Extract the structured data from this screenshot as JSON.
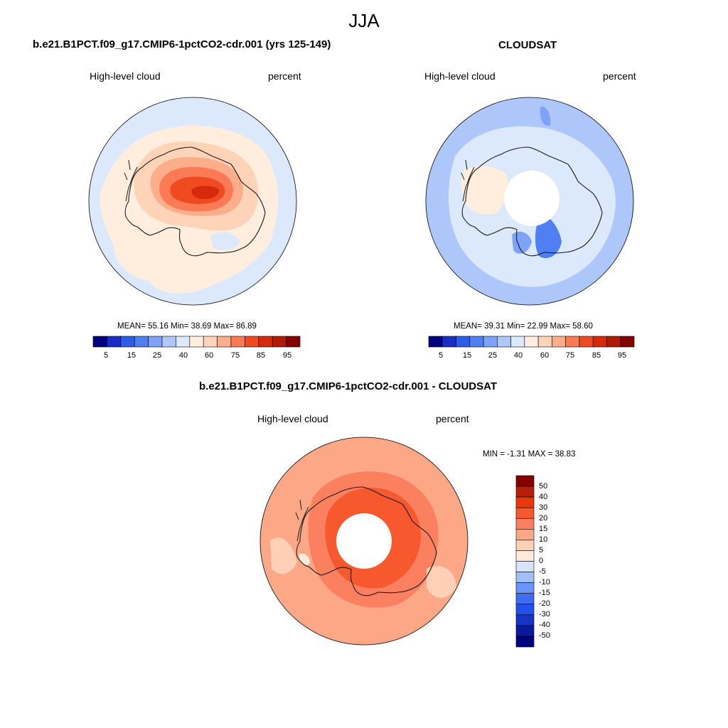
{
  "title": "JJA",
  "colors": {
    "abs_scale": [
      "#000080",
      "#1a2dc8",
      "#2e5ce6",
      "#4f7ff2",
      "#7ca3f7",
      "#aec7fa",
      "#dce9fc",
      "#ffeede",
      "#ffd3b8",
      "#fcae8a",
      "#fa7a55",
      "#f04a22",
      "#d72a0d",
      "#b01a06",
      "#870000"
    ],
    "diff_scale": [
      "#000080",
      "#0a1a9a",
      "#1535c8",
      "#2250ea",
      "#3d6ef2",
      "#6a94f6",
      "#a2bff9",
      "#d5e4fb",
      "#ffeadb",
      "#ffd0b6",
      "#fca886",
      "#fb8060",
      "#f8582d",
      "#e9380e",
      "#b81d05",
      "#870000"
    ],
    "coastline": "#1a1a1a"
  },
  "panels": {
    "model": {
      "title": "b.e21.B1PCT.f09_g17.CMIP6-1pctCO2-cdr.001 (yrs 125-149)",
      "left_label": "High-level cloud",
      "right_label": "percent",
      "stats": "MEAN=  55.16  Min=  38.69  Max=  86.89",
      "stats_values": {
        "mean": 55.16,
        "min": 38.69,
        "max": 86.89
      }
    },
    "obs": {
      "title": "CLOUDSAT",
      "left_label": "High-level cloud",
      "right_label": "percent",
      "stats": "MEAN=  39.31  Min=  22.99  Max=  58.60",
      "stats_values": {
        "mean": 39.31,
        "min": 22.99,
        "max": 58.6
      }
    },
    "diff": {
      "title": "b.e21.B1PCT.f09_g17.CMIP6-1pctCO2-cdr.001 - CLOUDSAT",
      "left_label": "High-level cloud",
      "right_label": "percent",
      "stats": "MIN =  -1.31 MAX =  38.83",
      "stats_values": {
        "min": -1.31,
        "max": 38.83
      }
    }
  },
  "abs_colorbar_labels": [
    "5",
    "15",
    "25",
    "40",
    "60",
    "75",
    "85",
    "95"
  ],
  "diff_colorbar_labels": [
    "50",
    "40",
    "30",
    "20",
    "15",
    "10",
    "5",
    "0",
    "-5",
    "-10",
    "-15",
    "-20",
    "-30",
    "-40",
    "-50"
  ]
}
